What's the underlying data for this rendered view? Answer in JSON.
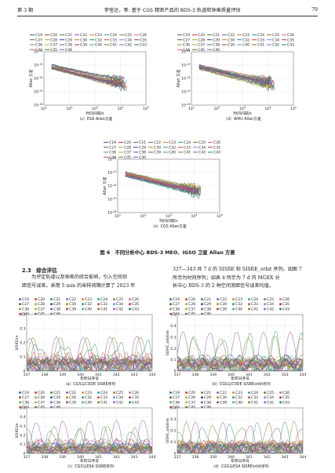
{
  "header": {
    "left": "第 3 期",
    "center": "李莹达，等. 基于 CGS 精密产品的 BDS-3 轨道和钟差质量评估",
    "right": "79"
  },
  "legend_prns": [
    "C19",
    "C20",
    "C21",
    "C22",
    "C23",
    "C24",
    "C25",
    "C26",
    "C27",
    "C28",
    "C29",
    "C30",
    "C32",
    "C33",
    "C34",
    "C35",
    "C36",
    "C37",
    "C38",
    "C39",
    "C40",
    "C41",
    "C42",
    "C43",
    "C44",
    "C45",
    "C46"
  ],
  "series_colors": [
    "#1f5fae",
    "#c8302c",
    "#2e8b3a",
    "#8a4fa3",
    "#e07b1a",
    "#1a9e9e",
    "#8c6d2f",
    "#d85aa0",
    "#5b5b5b",
    "#9fae1d",
    "#3a3ab0",
    "#b8860b",
    "#2a8f6d",
    "#c4502e",
    "#6a8fd0",
    "#a03070",
    "#5ea53c",
    "#d0a020",
    "#4a6a8a",
    "#9c3c3c",
    "#3ea0c8",
    "#7a7a20",
    "#b04ad0",
    "#208050",
    "#e05060",
    "#507020",
    "#8050c0"
  ],
  "fig6": {
    "caption": "图 6　不同分析中心 BDS-3 MEO、IGSO 卫星 Allan 方差",
    "allan_ylabel": "Allan 方差",
    "allan_xlabel": "时间间隔/s",
    "panels": [
      {
        "caption": "（c）ESA Allan方差",
        "ylim": [
          -16,
          -12
        ],
        "xlim": [
          1,
          5
        ]
      },
      {
        "caption": "（d）WHU Allan方差",
        "ylim": [
          -16,
          -12
        ],
        "xlim": [
          1,
          5
        ]
      },
      {
        "caption": "（e）CGS Allan方差",
        "ylim": [
          -16,
          -12
        ],
        "xlim": [
          1,
          5
        ]
      }
    ],
    "y_ticks": [
      "10^-12",
      "10^-13",
      "10^-14",
      "10^-15",
      "10^-16"
    ],
    "x_ticks": [
      "10^1",
      "10^2",
      "10^3",
      "10^4",
      "10^5"
    ]
  },
  "section": {
    "heading": "2.3　综合评估",
    "left_lines": [
      "为评定轨道以及钟差的综合影响，引入空间测",
      "距信号误差。采用 5 min 的采样间隔计算了 2023 年"
    ],
    "right_lines": [
      "337—343 共 7 d 的 SISRE 和 SISRE_orbit 序列。如图 7",
      "所示为时间序列；如表 4 所示为 7 d 内 MGEX 分",
      "析中心 BDS-3 的 2 种空间测距信号误差均值。"
    ]
  },
  "fig7": {
    "xlabel": "年积日序号",
    "x_ticks": [
      "337",
      "338",
      "339",
      "340",
      "341",
      "342",
      "343",
      "344"
    ],
    "panels": [
      {
        "caption": "（a）CGS与CODE SISRE序列",
        "ylabel": "SISRE/m",
        "y_ticks": [
          "0.4",
          "0.3",
          "0.2",
          "0.1",
          "0"
        ],
        "ylim": [
          0,
          0.4
        ]
      },
      {
        "caption": "（b）CGS与CODE SISREorbit序列",
        "ylabel": "SISRE_orbit/m",
        "y_ticks": [
          "0.5",
          "0.4",
          "0.3",
          "0.2",
          "0.1",
          "0"
        ],
        "ylim": [
          0,
          0.5
        ]
      },
      {
        "caption": "（c）CGS与ESA SISRE序列",
        "ylabel": "SISRE/m",
        "y_ticks": [
          "0.5",
          "0.4",
          "0.3",
          "0.2",
          "0.1",
          "0"
        ],
        "ylim": [
          0,
          0.5
        ]
      },
      {
        "caption": "（d）CGS与ESA SISREorbit序列",
        "ylabel": "SISRE_orbit/m",
        "y_ticks": [
          "0.4",
          "0.3",
          "0.2",
          "0.1",
          "0"
        ],
        "ylim": [
          0,
          0.4
        ]
      }
    ]
  }
}
